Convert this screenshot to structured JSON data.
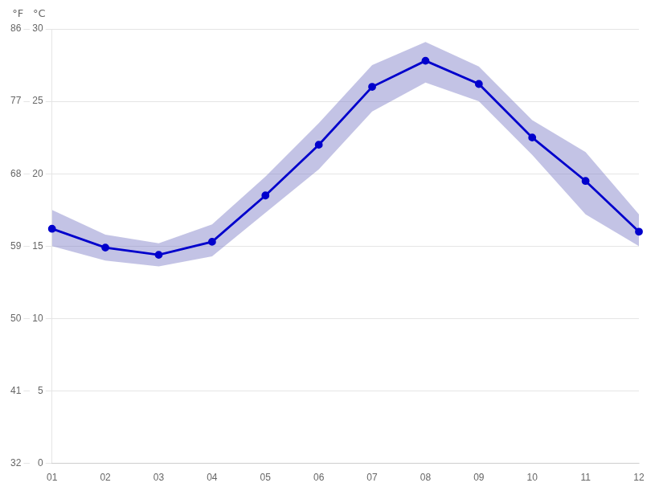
{
  "chart_data": {
    "type": "line",
    "categories": [
      "01",
      "02",
      "03",
      "04",
      "05",
      "06",
      "07",
      "08",
      "09",
      "10",
      "11",
      "12"
    ],
    "series": [
      {
        "type": "band",
        "color": "#8888CC",
        "low": [
          15.0,
          14.0,
          13.6,
          14.3,
          17.3,
          20.3,
          24.3,
          26.3,
          25.0,
          21.3,
          17.2,
          15.0
        ],
        "high": [
          17.5,
          15.8,
          15.2,
          16.5,
          19.8,
          23.5,
          27.5,
          29.1,
          27.4,
          23.7,
          21.5,
          17.2
        ]
      },
      {
        "type": "line",
        "color": "#0000CC",
        "marker": "circle",
        "values": [
          16.2,
          14.9,
          14.4,
          15.3,
          18.5,
          22.0,
          26.0,
          27.8,
          26.2,
          22.5,
          19.5,
          16.0
        ]
      }
    ],
    "ylabel": "°C",
    "ylim": [
      0,
      30
    ],
    "yticks": [
      0,
      5,
      10,
      15,
      20,
      25,
      30
    ],
    "y2label": "°F",
    "y2lim": [
      32,
      86
    ],
    "y2ticks": [
      32,
      41,
      50,
      59,
      68,
      77,
      86
    ],
    "grid": true
  }
}
